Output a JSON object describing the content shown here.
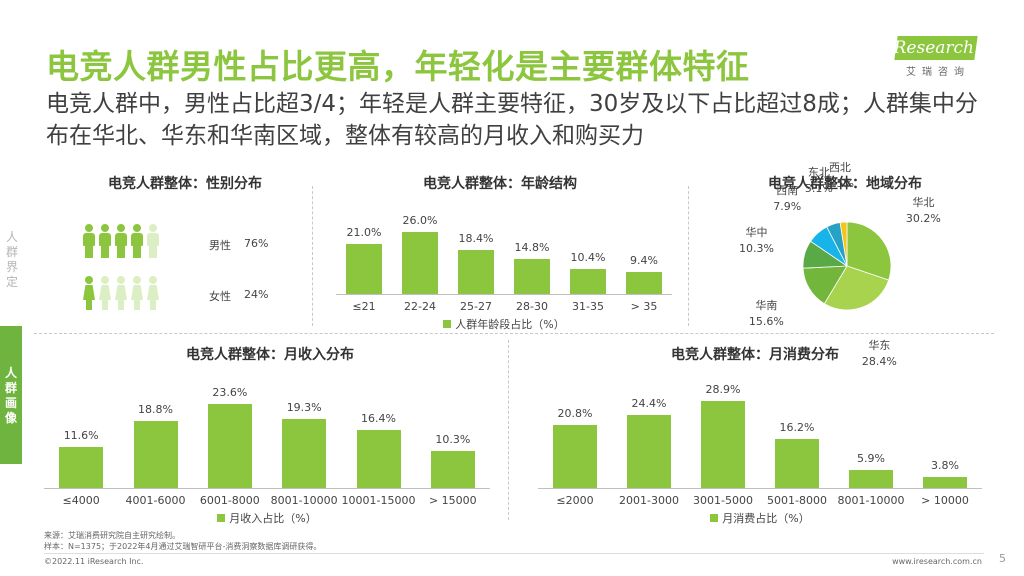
{
  "header": {
    "title": "电竞人群男性占比更高，年轻化是主要群体特征",
    "subtitle": "电竞人群中，男性占比超3/4；年轻是人群主要特征，30岁及以下占比超过8成；人群集中分布在华北、华东和华南区域，整体有较高的月收入和购买力",
    "logo_main": "iResearch",
    "logo_sub": "艾瑞咨询"
  },
  "sidebar": {
    "top_label": "人群界定",
    "active_label": "人群画像"
  },
  "colors": {
    "accent": "#8cc63f",
    "accent_light": "#dcefc4",
    "pie": [
      "#8cc63f",
      "#a7d34f",
      "#72b73b",
      "#59a946",
      "#18b4e9",
      "#26a2c5",
      "#f5c518"
    ]
  },
  "gender": {
    "title": "电竞人群整体：性别分布",
    "male_label": "男性",
    "male_value": "76%",
    "male_share": 0.76,
    "female_label": "女性",
    "female_value": "24%",
    "female_share": 0.24
  },
  "chart_data": [
    {
      "type": "bar",
      "id": "age",
      "title": "电竞人群整体：年龄结构",
      "categories": [
        "≤21",
        "22-24",
        "25-27",
        "28-30",
        "31-35",
        "> 35"
      ],
      "values": [
        21.0,
        26.0,
        18.4,
        14.8,
        10.4,
        9.4
      ],
      "value_labels": [
        "21.0%",
        "26.0%",
        "18.4%",
        "14.8%",
        "10.4%",
        "9.4%"
      ],
      "series": [
        {
          "name": "人群年龄段占比（%）",
          "values": [
            21.0,
            26.0,
            18.4,
            14.8,
            10.4,
            9.4
          ]
        }
      ],
      "ylim": [
        0,
        26.0
      ]
    },
    {
      "type": "pie",
      "id": "region",
      "title": "电竞人群整体：地域分布",
      "categories": [
        "华北",
        "华东",
        "华南",
        "华中",
        "西南",
        "东北",
        "西北"
      ],
      "values": [
        30.2,
        28.4,
        15.6,
        10.3,
        7.9,
        5.1,
        2.5
      ],
      "value_labels": [
        "30.2%",
        "28.4%",
        "15.6%",
        "10.3%",
        "7.9%",
        "5.1%",
        "2.5%"
      ]
    },
    {
      "type": "bar",
      "id": "income",
      "title": "电竞人群整体：月收入分布",
      "categories": [
        "≤4000",
        "4001-6000",
        "6001-8000",
        "8001-10000",
        "10001-15000",
        "> 15000"
      ],
      "values": [
        11.6,
        18.8,
        23.6,
        19.3,
        16.4,
        10.3
      ],
      "value_labels": [
        "11.6%",
        "18.8%",
        "23.6%",
        "19.3%",
        "16.4%",
        "10.3%"
      ],
      "series": [
        {
          "name": "月收入占比（%）",
          "values": [
            11.6,
            18.8,
            23.6,
            19.3,
            16.4,
            10.3
          ]
        }
      ],
      "ylim": [
        0,
        23.6
      ]
    },
    {
      "type": "bar",
      "id": "spend",
      "title": "电竞人群整体：月消费分布",
      "categories": [
        "≤2000",
        "2001-3000",
        "3001-5000",
        "5001-8000",
        "8001-10000",
        "> 10000"
      ],
      "values": [
        20.8,
        24.4,
        28.9,
        16.2,
        5.9,
        3.8
      ],
      "value_labels": [
        "20.8%",
        "24.4%",
        "28.9%",
        "16.2%",
        "5.9%",
        "3.8%"
      ],
      "series": [
        {
          "name": "月消费占比（%）",
          "values": [
            20.8,
            24.4,
            28.9,
            16.2,
            5.9,
            3.8
          ]
        }
      ],
      "ylim": [
        0,
        28.9
      ]
    }
  ],
  "footer": {
    "source": "来源：艾瑞消费研究院自主研究绘制。",
    "sample": "样本：N=1375；于2022年4月通过艾瑞智研平台-消费洞察数据库调研获得。",
    "copyright": "©2022.11 iResearch Inc.",
    "site": "www.iresearch.com.cn",
    "page": "5"
  }
}
